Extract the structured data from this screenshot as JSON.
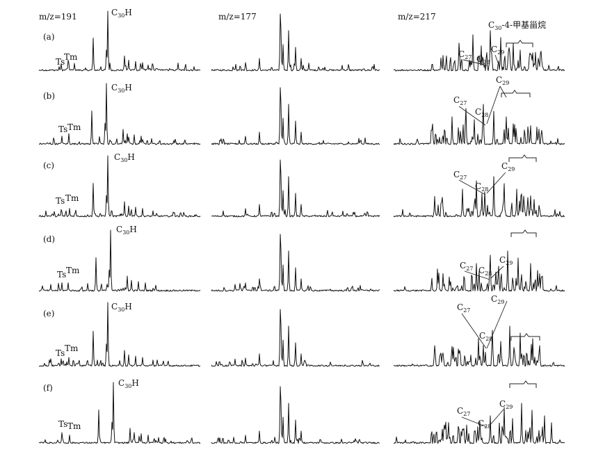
{
  "figure": {
    "columns": [
      {
        "title": "m/z=191"
      },
      {
        "title": "m/z=177"
      },
      {
        "title": "m/z=217"
      }
    ],
    "rows": [
      "(a)",
      "(b)",
      "(c)",
      "(d)",
      "(e)",
      "(f)"
    ],
    "labels": {
      "ts": "Ts",
      "tm": "Tm",
      "c30h_base": "C",
      "c30h_sub": "30",
      "c30h_tail": "H",
      "c27_base": "C",
      "c27_sub": "27",
      "c28_base": "C",
      "c28_sub": "28",
      "c29_base": "C",
      "c29_sub": "29",
      "methyl_base": "C",
      "methyl_sub": "30",
      "methyl_tail": "-4-甲基甾烷"
    }
  },
  "chart_data": {
    "type": "mass chromatogram grid",
    "columns": [
      "m/z=191",
      "m/z=177",
      "m/z=217"
    ],
    "rows": [
      "(a)",
      "(b)",
      "(c)",
      "(d)",
      "(e)",
      "(f)"
    ],
    "peak_labels": {
      "m/z=191": [
        "Ts",
        "Tm",
        "C30H"
      ],
      "m/z=217": [
        "C27",
        "C28",
        "C29",
        "C30-4-甲基甾烷"
      ]
    },
    "relative_peak_heights": {
      "m/z=191": [
        {
          "row": "(a)",
          "Ts": 0.12,
          "Tm": 0.18,
          "C30H": 1.0
        },
        {
          "row": "(b)",
          "Ts": 0.14,
          "Tm": 0.18,
          "C30H": 1.0
        },
        {
          "row": "(c)",
          "Ts": 0.12,
          "Tm": 0.14,
          "C30H": 1.0
        },
        {
          "row": "(d)",
          "Ts": 0.14,
          "Tm": 0.14,
          "C30H": 1.0
        },
        {
          "row": "(e)",
          "Ts": 0.12,
          "Tm": 0.14,
          "C30H": 1.0
        },
        {
          "row": "(f)",
          "Ts": 0.18,
          "Tm": 0.14,
          "C30H": 1.0
        }
      ]
    }
  }
}
